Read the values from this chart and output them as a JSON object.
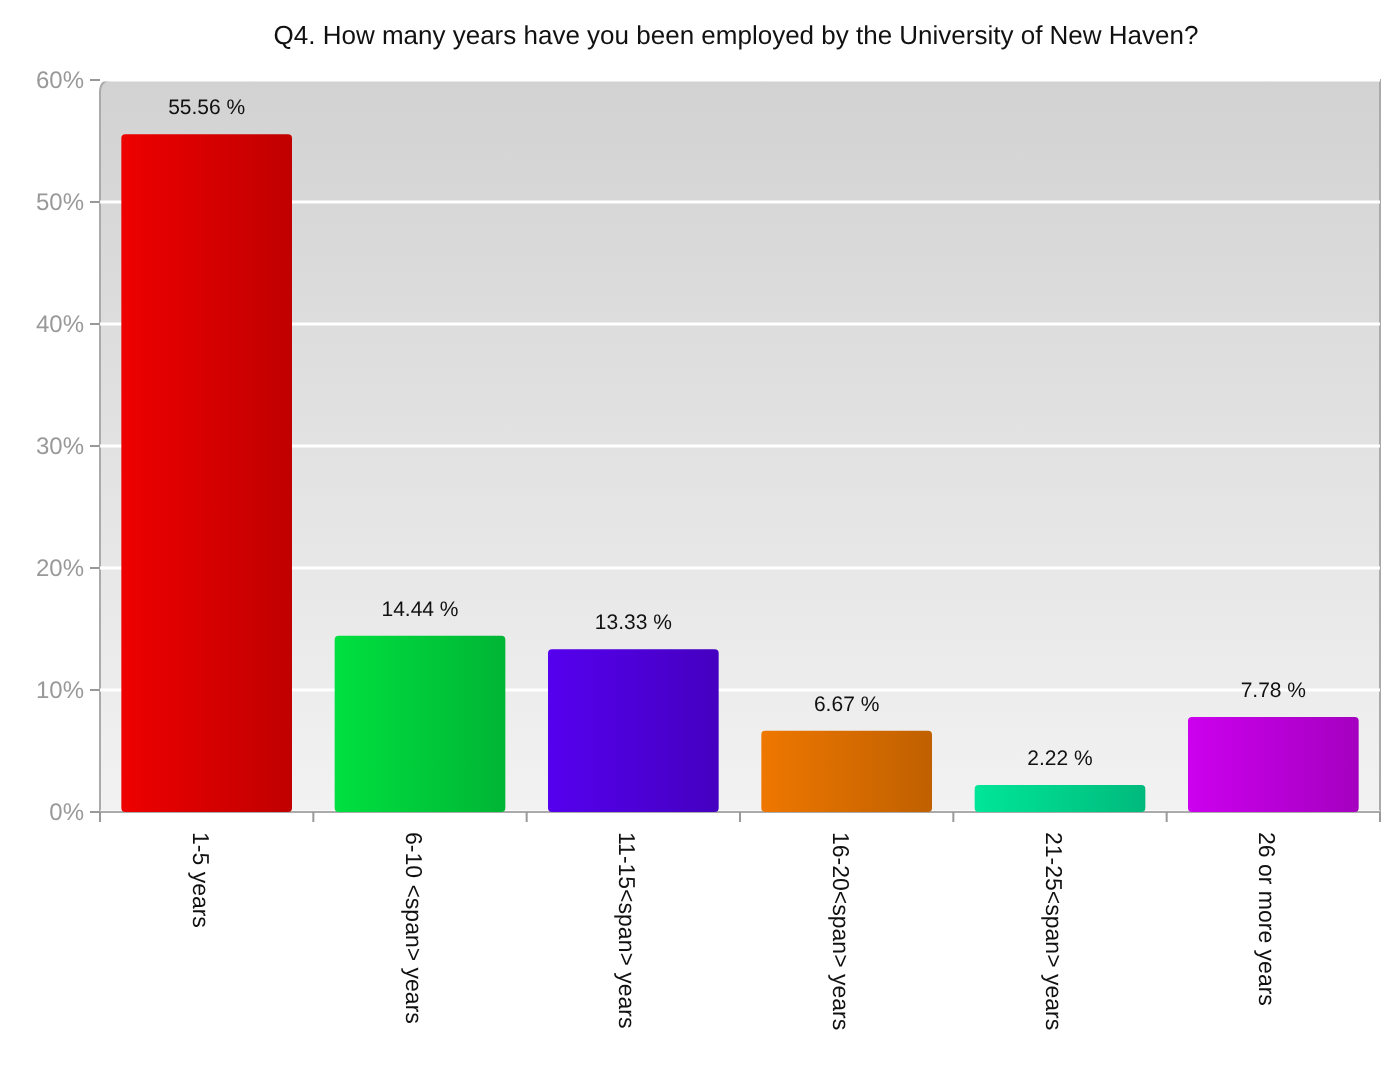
{
  "chart_data": {
    "type": "bar",
    "title": "Q4. How many years have you been employed by the University of New Haven?",
    "categories": [
      "1-5 years",
      "6-10 <span> years",
      "11-15<span> years",
      "16-20<span> years",
      "21-25<span> years",
      "26 or more years"
    ],
    "values": [
      55.56,
      14.44,
      13.33,
      6.67,
      2.22,
      7.78
    ],
    "value_labels": [
      "55.56 %",
      "14.44 %",
      "13.33 %",
      "6.67 %",
      "2.22 %",
      "7.78 %"
    ],
    "colors": [
      "#ee0000",
      "#00e040",
      "#5500ee",
      "#ee7700",
      "#00e699",
      "#cc00ee"
    ],
    "ylim": [
      0,
      60
    ],
    "yticks": [
      {
        "value": 0,
        "label": "0%"
      },
      {
        "value": 10,
        "label": "10%"
      },
      {
        "value": 20,
        "label": "20%"
      },
      {
        "value": 30,
        "label": "30%"
      },
      {
        "value": 40,
        "label": "40%"
      },
      {
        "value": 50,
        "label": "50%"
      },
      {
        "value": 60,
        "label": "60%"
      }
    ],
    "grid": "y"
  }
}
